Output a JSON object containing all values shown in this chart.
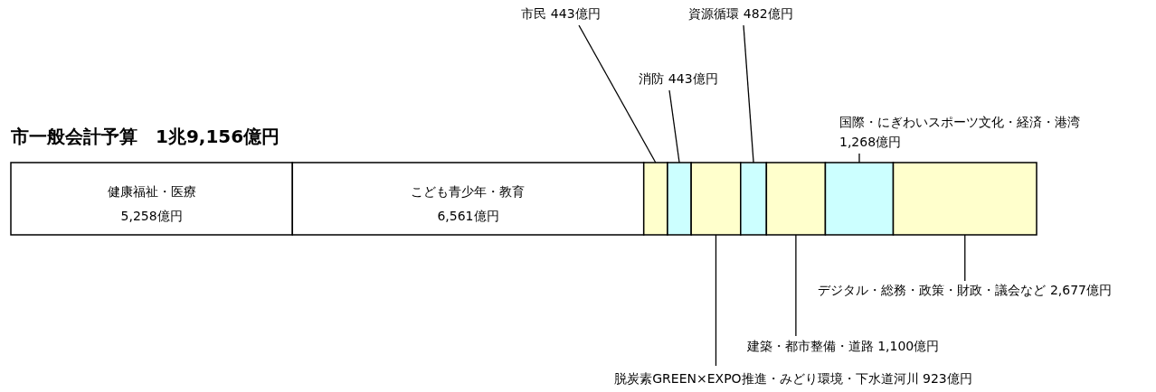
{
  "chart_data": {
    "type": "bar",
    "title": "市一般会計予算　1兆9,156億円",
    "orientation": "horizontal",
    "stacked": true,
    "categories": [
      null
    ],
    "series": [
      {
        "name": "健康福祉・医療",
        "color": "#ffffff",
        "values": [
          5258
        ],
        "value_labels": [
          "5,258億円"
        ]
      },
      {
        "name": "こども青少年・教育",
        "color": "#ffffff",
        "values": [
          6561
        ],
        "value_labels": [
          "6,561億円"
        ]
      },
      {
        "name": "市民",
        "color": "#ffffcc",
        "values": [
          443
        ],
        "value_labels": [
          "443億円"
        ]
      },
      {
        "name": "消防",
        "color": "#ccffff",
        "values": [
          443
        ],
        "value_labels": [
          "443億円"
        ]
      },
      {
        "name": "脱炭素GREEN×EXPO推進・みどり環境・下水道河川",
        "color": "#ffffcc",
        "values": [
          923
        ],
        "value_labels": [
          "923億円"
        ]
      },
      {
        "name": "資源循環",
        "color": "#ccffff",
        "values": [
          482
        ],
        "value_labels": [
          "482億円"
        ]
      },
      {
        "name": "建築・都市整備・道路",
        "color": "#ffffcc",
        "values": [
          1100
        ],
        "value_labels": [
          "1,100億円"
        ]
      },
      {
        "name": "国際・にぎわいスポーツ文化・経済・港湾",
        "color": "#ccffff",
        "values": [
          1268
        ],
        "value_labels": [
          "1,268億円"
        ]
      },
      {
        "name": "デジタル・総務・政策・財政・議会など",
        "color": "#ffffcc",
        "values": [
          2677
        ],
        "value_labels": [
          "2,677億円"
        ]
      }
    ]
  }
}
